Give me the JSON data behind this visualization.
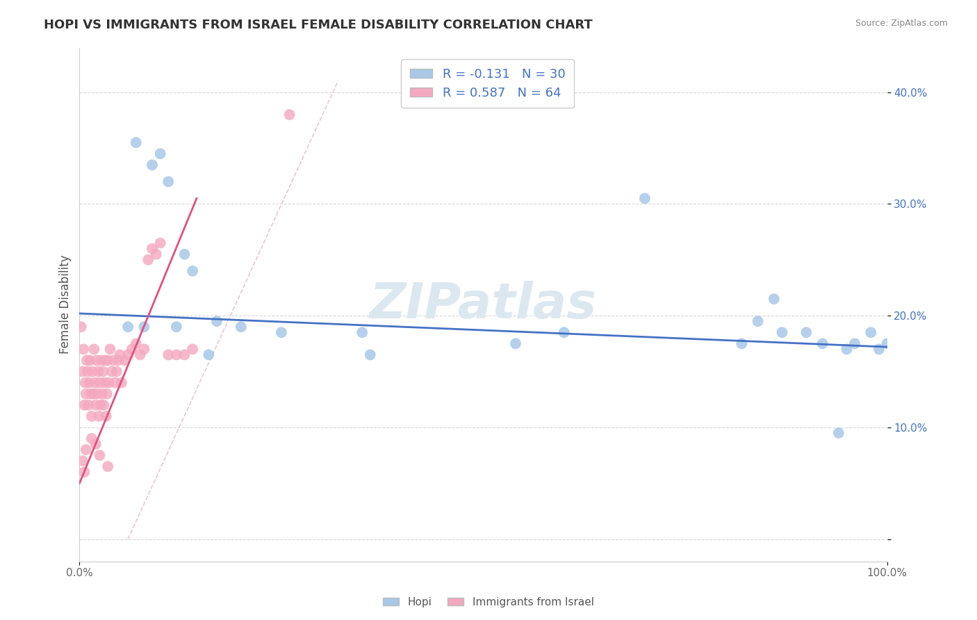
{
  "title": "HOPI VS IMMIGRANTS FROM ISRAEL FEMALE DISABILITY CORRELATION CHART",
  "source": "Source: ZipAtlas.com",
  "ylabel": "Female Disability",
  "xlim": [
    0.0,
    1.0
  ],
  "ylim": [
    -0.02,
    0.44
  ],
  "yticks": [
    0.0,
    0.1,
    0.2,
    0.3,
    0.4
  ],
  "ytick_labels": [
    "",
    "10.0%",
    "20.0%",
    "30.0%",
    "40.0%"
  ],
  "xticks": [
    0.0,
    1.0
  ],
  "xtick_labels": [
    "0.0%",
    "100.0%"
  ],
  "hopi_R": -0.131,
  "hopi_N": 30,
  "israel_R": 0.587,
  "israel_N": 64,
  "hopi_color": "#a8c8e8",
  "israel_color": "#f4a8c0",
  "hopi_line_color": "#4472c4",
  "israel_line_color": "#e05080",
  "ref_line_color": "#e8c0cc",
  "background_color": "#ffffff",
  "grid_color": "#d8d8d8",
  "legend_text_color": "#4472c4",
  "watermark_color": "#dce8f0",
  "watermark": "ZIPatlas",
  "hopi_x": [
    0.07,
    0.09,
    0.1,
    0.11,
    0.13,
    0.14,
    0.17,
    0.2,
    0.35,
    0.54,
    0.7,
    0.84,
    0.86,
    0.87,
    0.9,
    0.92,
    0.94,
    0.96,
    0.98,
    1.0,
    0.06,
    0.08,
    0.12,
    0.16,
    0.25,
    0.36,
    0.6,
    0.82,
    0.95,
    0.99
  ],
  "hopi_y": [
    0.355,
    0.335,
    0.345,
    0.32,
    0.255,
    0.24,
    0.195,
    0.19,
    0.185,
    0.175,
    0.305,
    0.195,
    0.215,
    0.185,
    0.185,
    0.175,
    0.095,
    0.175,
    0.185,
    0.175,
    0.19,
    0.19,
    0.19,
    0.165,
    0.185,
    0.165,
    0.185,
    0.175,
    0.17,
    0.17
  ],
  "israel_x": [
    0.002,
    0.004,
    0.005,
    0.006,
    0.007,
    0.008,
    0.009,
    0.01,
    0.011,
    0.012,
    0.013,
    0.014,
    0.015,
    0.016,
    0.017,
    0.018,
    0.019,
    0.02,
    0.021,
    0.022,
    0.023,
    0.024,
    0.025,
    0.026,
    0.027,
    0.028,
    0.029,
    0.03,
    0.031,
    0.032,
    0.033,
    0.034,
    0.035,
    0.036,
    0.038,
    0.04,
    0.042,
    0.044,
    0.046,
    0.048,
    0.05,
    0.052,
    0.056,
    0.06,
    0.065,
    0.07,
    0.075,
    0.08,
    0.085,
    0.09,
    0.095,
    0.1,
    0.11,
    0.12,
    0.13,
    0.14,
    0.004,
    0.006,
    0.008,
    0.015,
    0.02,
    0.025,
    0.035,
    0.26
  ],
  "israel_y": [
    0.19,
    0.15,
    0.17,
    0.12,
    0.14,
    0.13,
    0.16,
    0.15,
    0.12,
    0.14,
    0.16,
    0.13,
    0.11,
    0.15,
    0.13,
    0.17,
    0.14,
    0.12,
    0.16,
    0.13,
    0.15,
    0.11,
    0.14,
    0.12,
    0.16,
    0.13,
    0.15,
    0.12,
    0.14,
    0.16,
    0.11,
    0.13,
    0.16,
    0.14,
    0.17,
    0.15,
    0.16,
    0.14,
    0.15,
    0.16,
    0.165,
    0.14,
    0.16,
    0.165,
    0.17,
    0.175,
    0.165,
    0.17,
    0.25,
    0.26,
    0.255,
    0.265,
    0.165,
    0.165,
    0.165,
    0.17,
    0.07,
    0.06,
    0.08,
    0.09,
    0.085,
    0.075,
    0.065,
    0.38
  ],
  "hopi_line_x": [
    0.0,
    1.0
  ],
  "hopi_line_y": [
    0.202,
    0.172
  ],
  "israel_line_x": [
    0.0,
    0.145
  ],
  "israel_line_y": [
    0.05,
    0.305
  ]
}
